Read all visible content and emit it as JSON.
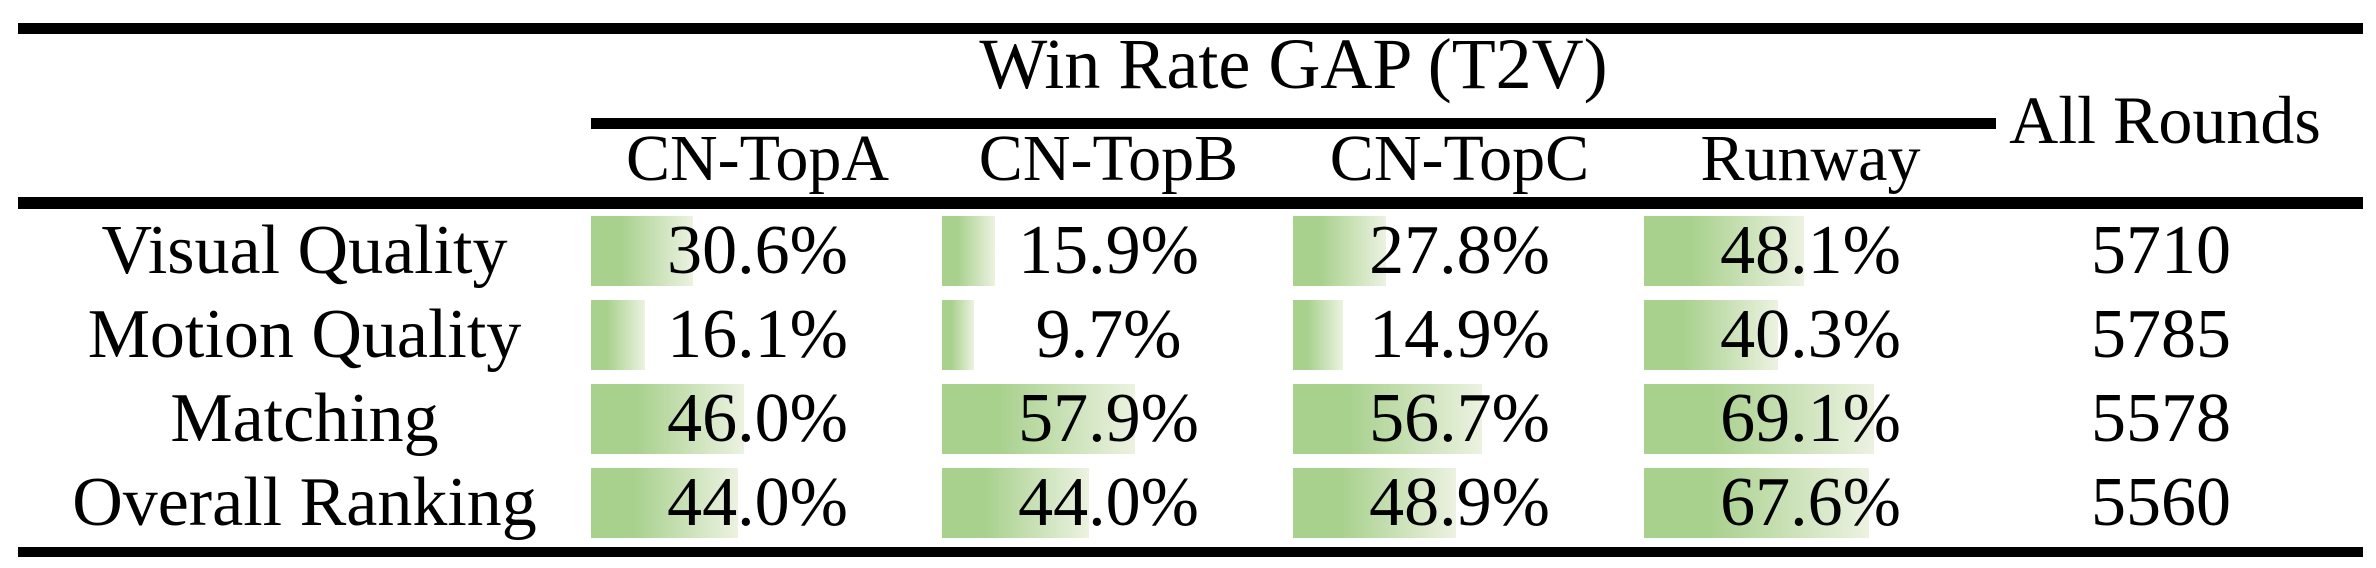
{
  "title": "Win Rate GAP (T2V)",
  "all_rounds_label": "All Rounds",
  "columns": [
    "CN-TopA",
    "CN-TopB",
    "CN-TopC",
    "Runway"
  ],
  "rows": [
    {
      "label": "Visual Quality",
      "values": [
        "30.6%",
        "15.9%",
        "27.8%",
        "48.1%"
      ],
      "all_rounds": "5710"
    },
    {
      "label": "Motion Quality",
      "values": [
        "16.1%",
        "9.7%",
        "14.9%",
        "40.3%"
      ],
      "all_rounds": "5785"
    },
    {
      "label": "Matching",
      "values": [
        "46.0%",
        "57.9%",
        "56.7%",
        "69.1%"
      ],
      "all_rounds": "5578"
    },
    {
      "label": "Overall Ranking",
      "values": [
        "44.0%",
        "44.0%",
        "48.9%",
        "67.6%"
      ],
      "all_rounds": "5560"
    }
  ],
  "colors": {
    "bar_gradient_start": "#a9d18e",
    "bar_gradient_end": "#ecf2e1",
    "rule": "#000000",
    "text": "#000000",
    "background": "#ffffff"
  },
  "chart_data": {
    "type": "table",
    "title": "Win Rate GAP (T2V)",
    "categories": [
      "Visual Quality",
      "Motion Quality",
      "Matching",
      "Overall Ranking"
    ],
    "series": [
      {
        "name": "CN-TopA",
        "values": [
          30.6,
          16.1,
          46.0,
          44.0
        ]
      },
      {
        "name": "CN-TopB",
        "values": [
          15.9,
          9.7,
          57.9,
          44.0
        ]
      },
      {
        "name": "CN-TopC",
        "values": [
          27.8,
          14.9,
          56.7,
          48.9
        ]
      },
      {
        "name": "Runway",
        "values": [
          48.1,
          40.3,
          69.1,
          67.6
        ]
      },
      {
        "name": "All Rounds",
        "values": [
          5710,
          5785,
          5578,
          5560
        ]
      }
    ],
    "value_unit": "%",
    "bar_scale": "data bars proportional to percentage, 100% = full column width",
    "legend_position": "none",
    "grid": false
  }
}
